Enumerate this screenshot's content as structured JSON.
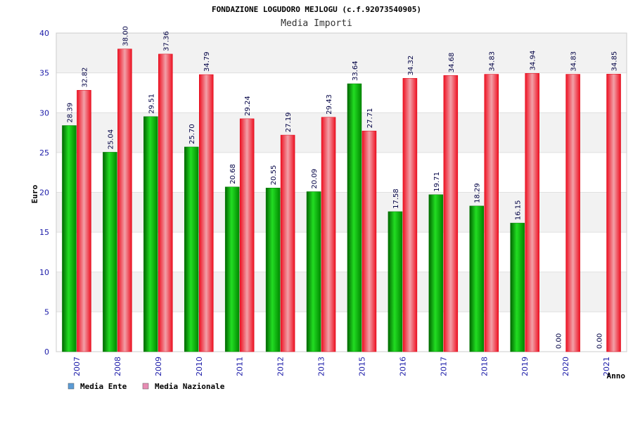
{
  "chart_data": {
    "type": "bar",
    "title": "FONDAZIONE LOGUDORO MEJLOGU (c.f.92073540905)",
    "subtitle": "Media Importi",
    "xlabel": "Anno",
    "ylabel": "Euro",
    "ylim": [
      0,
      40
    ],
    "yticks": [
      "0",
      "5",
      "10",
      "15",
      "20",
      "25",
      "30",
      "35",
      "40"
    ],
    "categories": [
      "2007",
      "2008",
      "2009",
      "2010",
      "2011",
      "2012",
      "2013",
      "2015",
      "2016",
      "2017",
      "2018",
      "2019",
      "2020",
      "2021"
    ],
    "series": [
      {
        "name": "Media Ente",
        "color": "#00b000",
        "legend_color": "#5b9bd5",
        "values": [
          28.39,
          25.04,
          29.51,
          25.7,
          20.68,
          20.55,
          20.09,
          33.64,
          17.58,
          19.71,
          18.29,
          16.15,
          0.0,
          0.0
        ],
        "labels": [
          "28.39",
          "25.04",
          "29.51",
          "25.70",
          "20.68",
          "20.55",
          "20.09",
          "33.64",
          "17.58",
          "19.71",
          "18.29",
          "16.15",
          "0.00",
          "0.00"
        ]
      },
      {
        "name": "Media Nazionale",
        "color": "#ee1c25",
        "legend_color": "#e88cb4",
        "values": [
          32.82,
          38.0,
          37.36,
          34.79,
          29.24,
          27.19,
          29.43,
          27.71,
          34.32,
          34.68,
          34.83,
          34.94,
          34.83,
          34.85
        ],
        "labels": [
          "32.82",
          "38.00",
          "37.36",
          "34.79",
          "29.24",
          "27.19",
          "29.43",
          "27.71",
          "34.32",
          "34.68",
          "34.83",
          "34.94",
          "34.83",
          "34.85"
        ]
      }
    ],
    "grid": true,
    "legend": "bottom-left"
  }
}
